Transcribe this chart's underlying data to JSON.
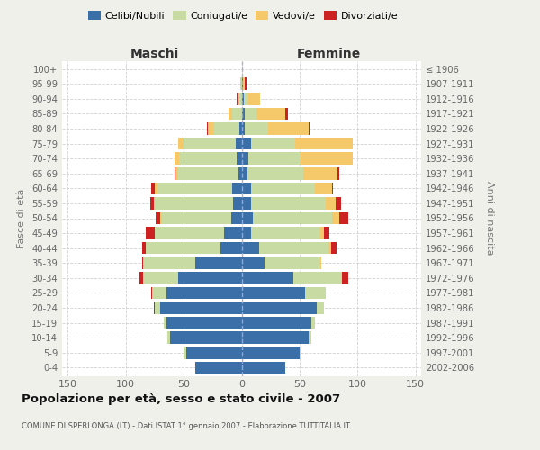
{
  "age_groups": [
    "0-4",
    "5-9",
    "10-14",
    "15-19",
    "20-24",
    "25-29",
    "30-34",
    "35-39",
    "40-44",
    "45-49",
    "50-54",
    "55-59",
    "60-64",
    "65-69",
    "70-74",
    "75-79",
    "80-84",
    "85-89",
    "90-94",
    "95-99",
    "100+"
  ],
  "birth_years": [
    "2002-2006",
    "1997-2001",
    "1992-1996",
    "1987-1991",
    "1982-1986",
    "1977-1981",
    "1972-1976",
    "1967-1971",
    "1962-1966",
    "1957-1961",
    "1952-1956",
    "1947-1951",
    "1942-1946",
    "1937-1941",
    "1932-1936",
    "1927-1931",
    "1922-1926",
    "1917-1921",
    "1912-1916",
    "1907-1911",
    "≤ 1906"
  ],
  "males": {
    "celibi": [
      40,
      48,
      62,
      65,
      70,
      65,
      55,
      40,
      18,
      15,
      9,
      7,
      8,
      3,
      4,
      5,
      2,
      0,
      0,
      0,
      0
    ],
    "coniugati": [
      0,
      2,
      2,
      2,
      5,
      12,
      30,
      45,
      65,
      60,
      60,
      68,
      65,
      52,
      50,
      45,
      22,
      8,
      3,
      1,
      0
    ],
    "vedovi": [
      0,
      0,
      0,
      0,
      0,
      0,
      0,
      0,
      0,
      0,
      1,
      1,
      2,
      2,
      4,
      5,
      5,
      3,
      0,
      0,
      0
    ],
    "divorziati": [
      0,
      0,
      0,
      0,
      1,
      1,
      3,
      1,
      3,
      8,
      4,
      3,
      3,
      1,
      0,
      0,
      1,
      0,
      1,
      0,
      0
    ]
  },
  "females": {
    "nubili": [
      38,
      50,
      58,
      60,
      65,
      55,
      45,
      20,
      15,
      8,
      10,
      8,
      8,
      5,
      6,
      8,
      3,
      3,
      2,
      1,
      0
    ],
    "coniugate": [
      0,
      1,
      2,
      3,
      6,
      18,
      42,
      48,
      60,
      60,
      68,
      65,
      55,
      48,
      45,
      38,
      20,
      10,
      4,
      0,
      0
    ],
    "vedove": [
      0,
      0,
      0,
      0,
      0,
      0,
      0,
      1,
      2,
      3,
      6,
      8,
      15,
      30,
      45,
      50,
      35,
      25,
      10,
      2,
      0
    ],
    "divorziate": [
      0,
      0,
      0,
      0,
      0,
      0,
      5,
      0,
      5,
      5,
      8,
      5,
      1,
      1,
      0,
      0,
      1,
      2,
      0,
      1,
      0
    ]
  },
  "colors": {
    "celibi": "#3a6fa8",
    "coniugati": "#c8dba2",
    "vedovi": "#f5c96a",
    "divorziati": "#cc2222"
  },
  "xlim": 155,
  "xticks": [
    -150,
    -100,
    -50,
    0,
    50,
    100,
    150
  ],
  "title": "Popolazione per età, sesso e stato civile - 2007",
  "subtitle": "COMUNE DI SPERLONGA (LT) - Dati ISTAT 1° gennaio 2007 - Elaborazione TUTTITALIA.IT",
  "xlabel_left": "Maschi",
  "xlabel_right": "Femmine",
  "ylabel_left": "Fasce di età",
  "ylabel_right": "Anni di nascita",
  "bg_color": "#f0f0eb",
  "plot_bg_color": "#ffffff",
  "legend_labels": [
    "Celibi/Nubili",
    "Coniugati/e",
    "Vedovi/e",
    "Divorziati/e"
  ]
}
